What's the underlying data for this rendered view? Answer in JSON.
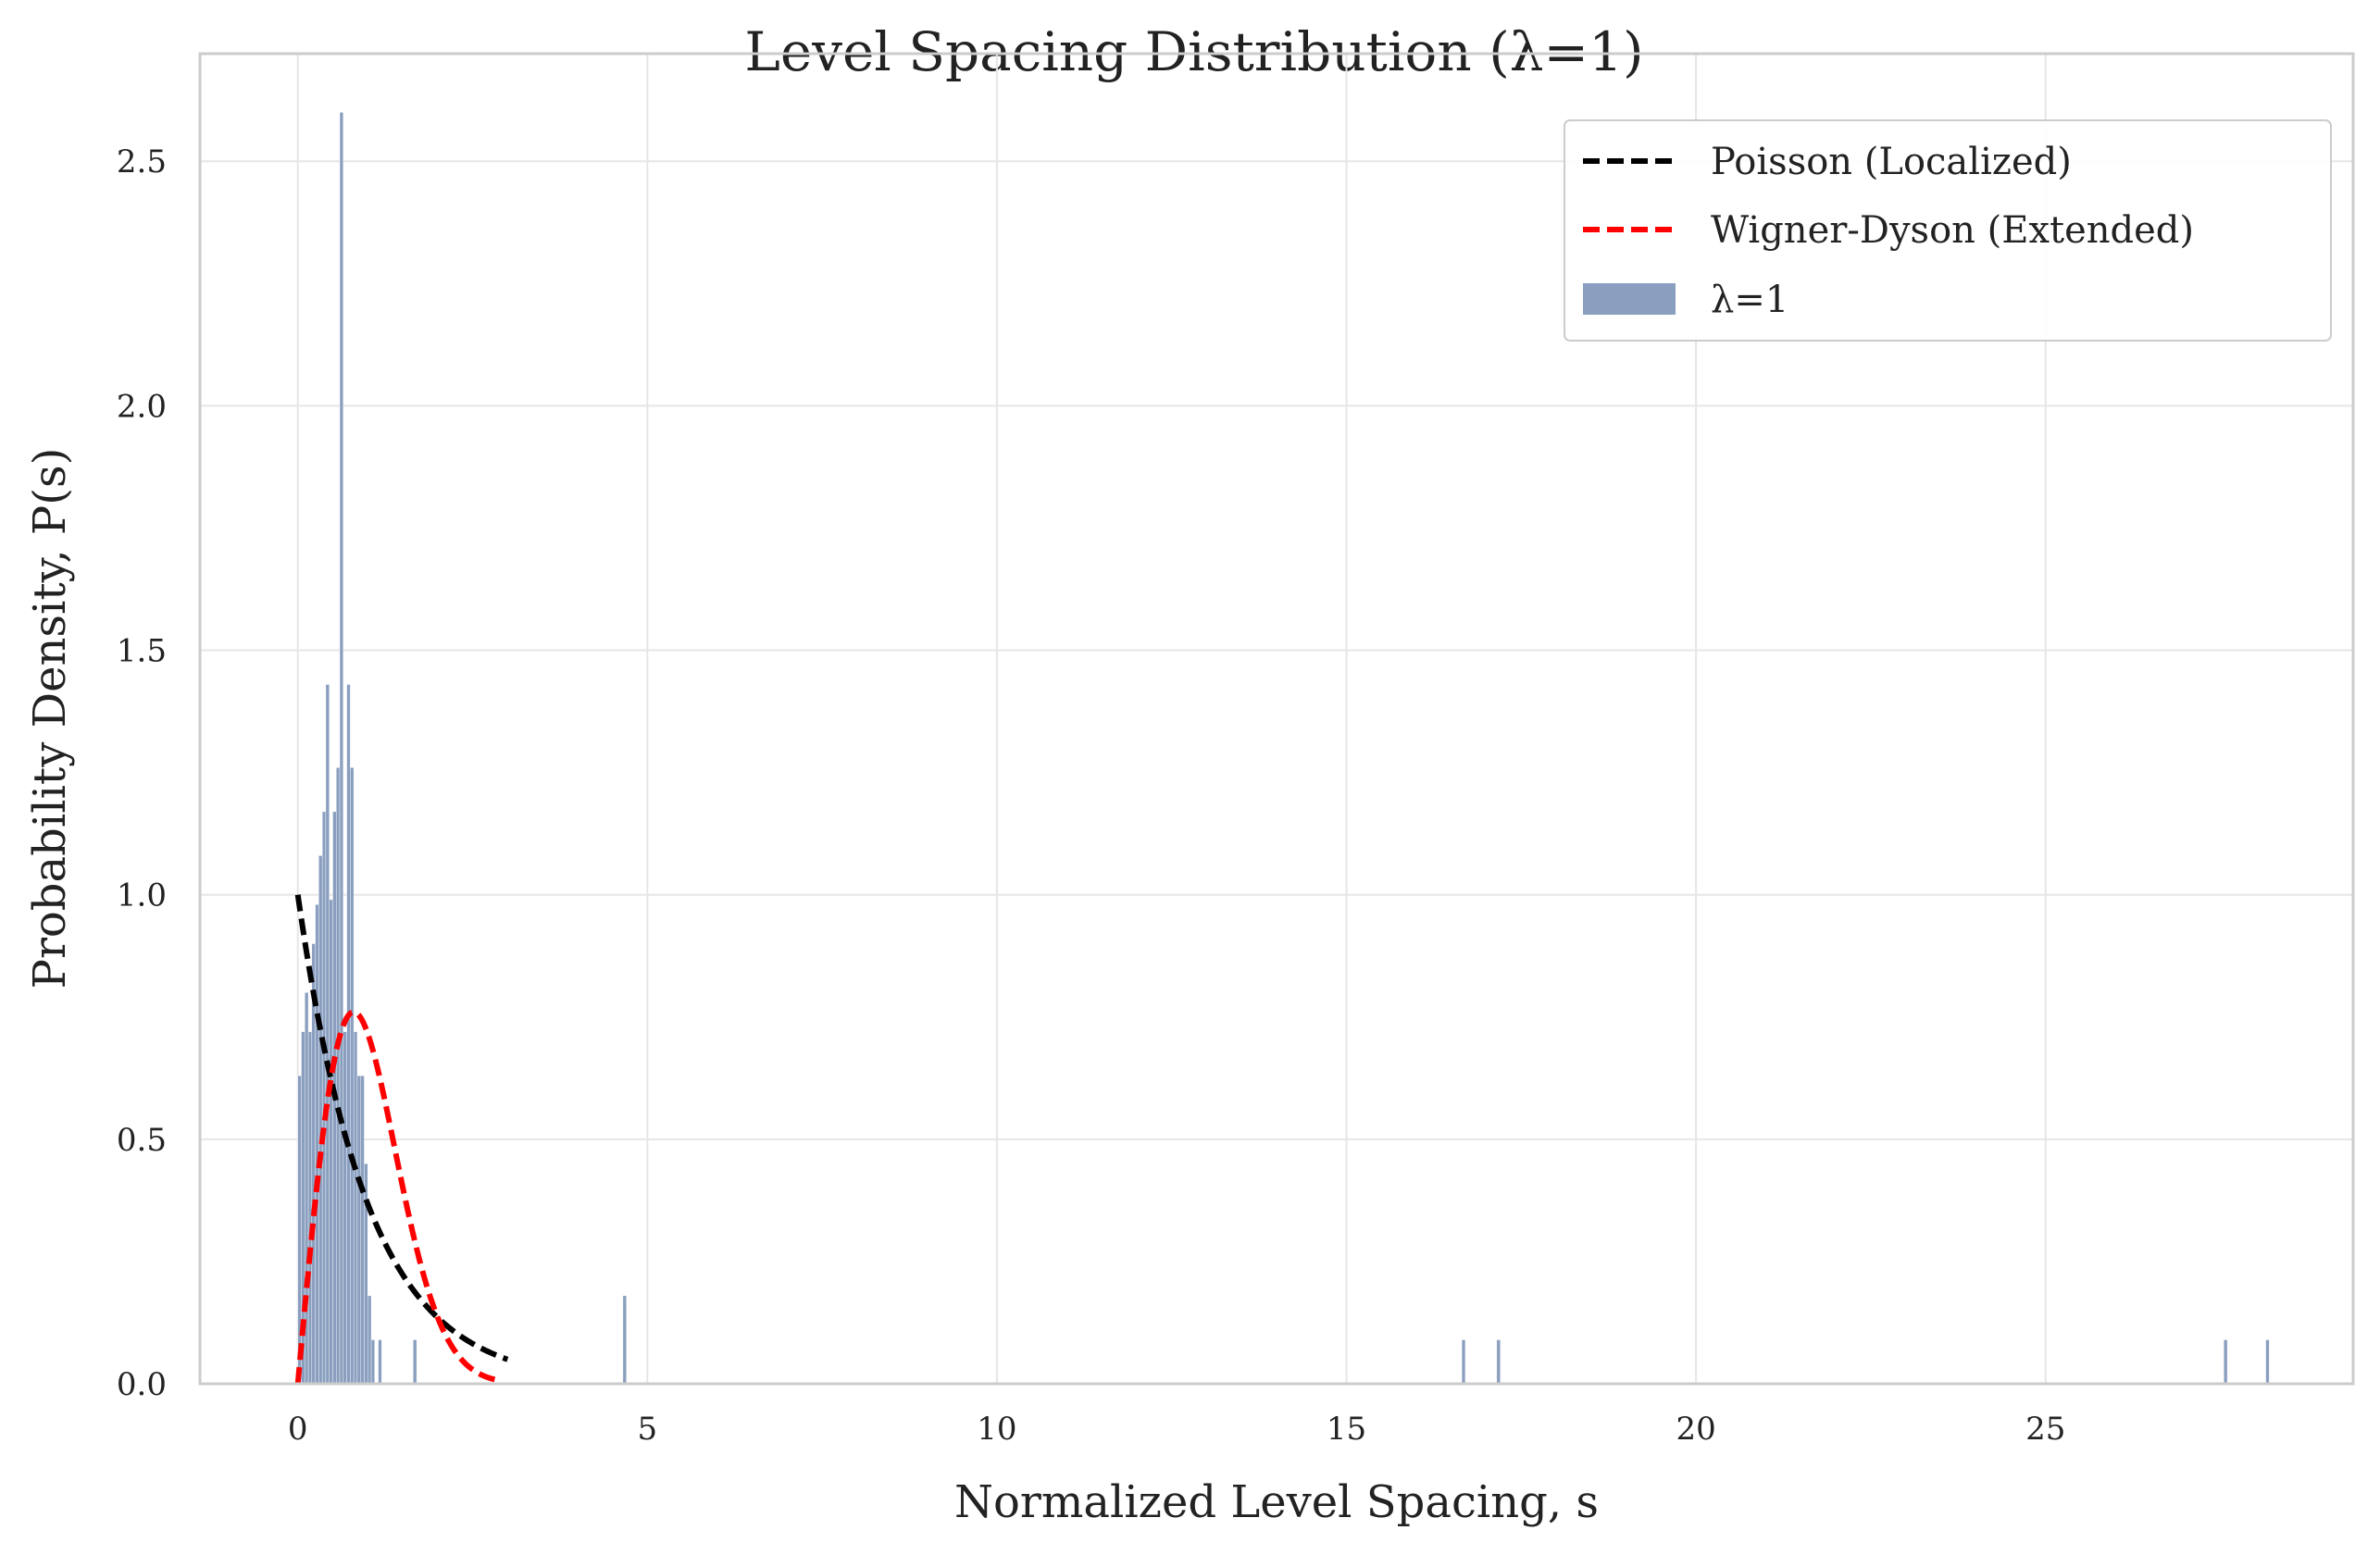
{
  "chart_data": {
    "type": "bar",
    "title": "Level Spacing Distribution (λ=1)",
    "xlabel": "Normalized Level Spacing, s",
    "ylabel": "Probability Density, P(s)",
    "xlim": [
      -1.4,
      29.4
    ],
    "ylim": [
      0,
      2.72
    ],
    "xticks": [
      0,
      5,
      10,
      15,
      20,
      25
    ],
    "yticks": [
      0.0,
      0.5,
      1.0,
      1.5,
      2.0,
      2.5
    ],
    "grid": true,
    "legend_position": "top-right",
    "colors": {
      "histogram": "#8a9fbf",
      "poisson": "#000000",
      "wigner": "#ff0000",
      "grid": "#e6e6e6",
      "spine": "#cccccc"
    },
    "legend": [
      {
        "label": "Poisson (Localized)",
        "style": "dashed-line",
        "color": "#000000"
      },
      {
        "label": "Wigner-Dyson (Extended)",
        "style": "dashed-line",
        "color": "#ff0000"
      },
      {
        "label": "λ=1",
        "style": "patch",
        "color": "#8a9fbf"
      }
    ],
    "histogram": {
      "name": "λ=1",
      "bin_width": 0.05,
      "bins": [
        {
          "x": 0.0,
          "y": 0.63
        },
        {
          "x": 0.05,
          "y": 0.72
        },
        {
          "x": 0.1,
          "y": 0.8
        },
        {
          "x": 0.15,
          "y": 0.72
        },
        {
          "x": 0.2,
          "y": 0.9
        },
        {
          "x": 0.25,
          "y": 0.98
        },
        {
          "x": 0.3,
          "y": 1.08
        },
        {
          "x": 0.35,
          "y": 1.17
        },
        {
          "x": 0.4,
          "y": 1.43
        },
        {
          "x": 0.45,
          "y": 0.99
        },
        {
          "x": 0.5,
          "y": 1.17
        },
        {
          "x": 0.55,
          "y": 1.26
        },
        {
          "x": 0.6,
          "y": 2.6
        },
        {
          "x": 0.65,
          "y": 0.72
        },
        {
          "x": 0.7,
          "y": 1.43
        },
        {
          "x": 0.75,
          "y": 1.26
        },
        {
          "x": 0.8,
          "y": 0.72
        },
        {
          "x": 0.85,
          "y": 0.63
        },
        {
          "x": 0.9,
          "y": 0.63
        },
        {
          "x": 0.95,
          "y": 0.45
        },
        {
          "x": 1.0,
          "y": 0.18
        },
        {
          "x": 1.05,
          "y": 0.09
        },
        {
          "x": 1.15,
          "y": 0.09
        },
        {
          "x": 1.65,
          "y": 0.09
        },
        {
          "x": 4.65,
          "y": 0.18
        },
        {
          "x": 16.65,
          "y": 0.09
        },
        {
          "x": 17.15,
          "y": 0.09
        },
        {
          "x": 27.55,
          "y": 0.09
        },
        {
          "x": 28.15,
          "y": 0.09
        }
      ]
    },
    "series": [
      {
        "name": "Poisson (Localized)",
        "formula": "exp(-s)",
        "domain": [
          0,
          3
        ]
      },
      {
        "name": "Wigner-Dyson (Extended)",
        "formula": "(pi/2) s exp(-pi s^2 / 4)",
        "domain": [
          0,
          2.9
        ]
      }
    ]
  }
}
